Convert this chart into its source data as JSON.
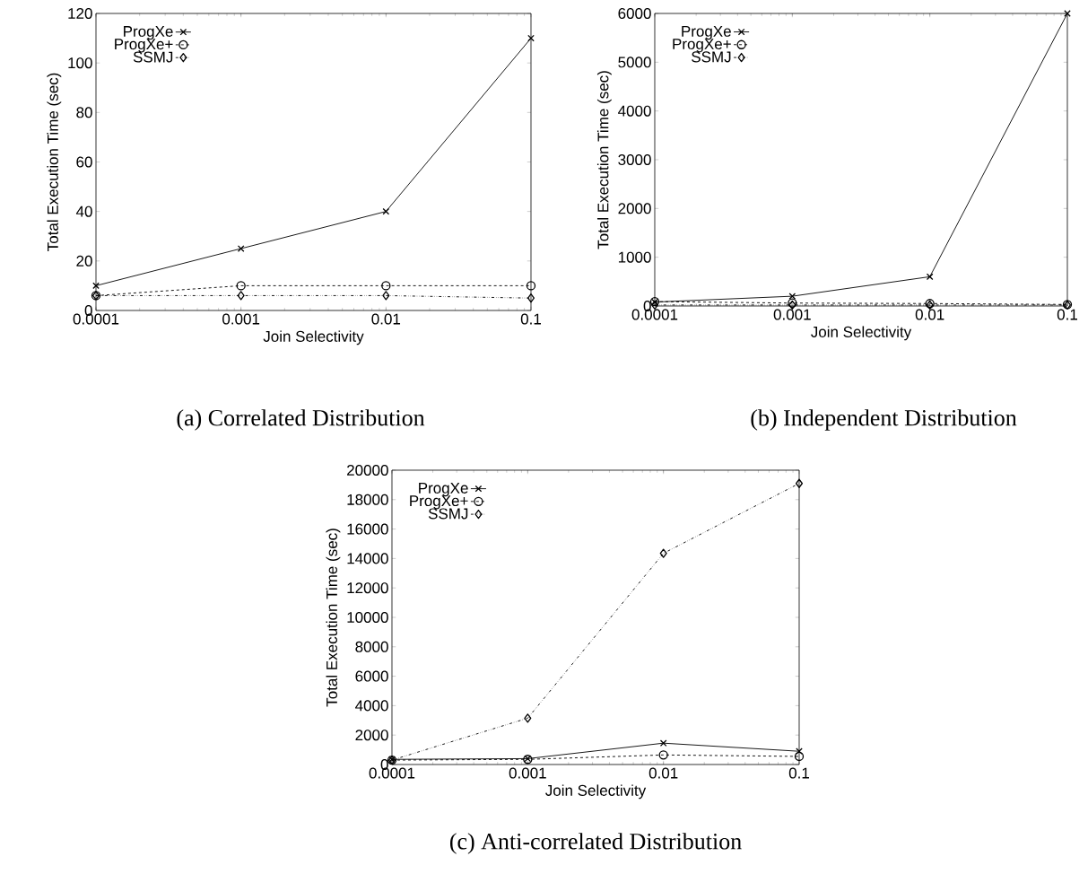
{
  "chart_data": [
    {
      "type": "line",
      "title": "(a) Correlated Distribution",
      "xlabel": "Join Selectivity",
      "ylabel": "Total Execution Time (sec)",
      "log": "x",
      "legend": "top left",
      "x": [
        0.0001,
        0.001,
        0.01,
        0.1
      ],
      "xlim": [
        0.0001,
        0.1
      ],
      "xticks": [
        0.0001,
        0.001,
        0.01,
        0.1
      ],
      "ylim": [
        0,
        120
      ],
      "yticks": [
        0,
        20,
        40,
        60,
        80,
        100,
        120
      ],
      "series": [
        {
          "name": "ProgXe",
          "color": "#000000",
          "marker": "cross",
          "line_style": "solid",
          "values": [
            10,
            25,
            40,
            110
          ]
        },
        {
          "name": "ProgXe+",
          "color": "#000000",
          "marker": "circle",
          "line_style": "dashed",
          "values": [
            6,
            10,
            10,
            10
          ]
        },
        {
          "name": "SSMJ",
          "color": "#000000",
          "marker": "diamond",
          "line_style": "dotted",
          "values": [
            6,
            6,
            6,
            5
          ]
        }
      ]
    },
    {
      "type": "line",
      "title": "(b) Independent Distribution",
      "xlabel": "Join Selectivity",
      "ylabel": "Total Execution Time (sec)",
      "log": "x",
      "legend": "top left",
      "x": [
        0.0001,
        0.001,
        0.01,
        0.1
      ],
      "xlim": [
        0.0001,
        0.1
      ],
      "xticks": [
        0.0001,
        0.001,
        0.01,
        0.1
      ],
      "ylim": [
        0,
        6000
      ],
      "yticks": [
        0,
        1000,
        2000,
        3000,
        4000,
        5000,
        6000
      ],
      "series": [
        {
          "name": "ProgXe",
          "color": "#000000",
          "marker": "cross",
          "line_style": "solid",
          "values": [
            80,
            200,
            600,
            6000
          ]
        },
        {
          "name": "ProgXe+",
          "color": "#000000",
          "marker": "circle",
          "line_style": "dashed",
          "values": [
            90,
            60,
            50,
            30
          ]
        },
        {
          "name": "SSMJ",
          "color": "#000000",
          "marker": "diamond",
          "line_style": "dotted",
          "values": [
            20,
            20,
            20,
            20
          ]
        }
      ]
    },
    {
      "type": "line",
      "title": "(c) Anti-correlated Distribution",
      "xlabel": "Join Selectivity",
      "ylabel": "Total Execution Time (sec)",
      "log": "x",
      "legend": "top left",
      "x": [
        0.0001,
        0.001,
        0.01,
        0.1
      ],
      "xlim": [
        0.0001,
        0.1
      ],
      "xticks": [
        0.0001,
        0.001,
        0.01,
        0.1
      ],
      "ylim": [
        0,
        20000
      ],
      "yticks": [
        0,
        2000,
        4000,
        6000,
        8000,
        10000,
        12000,
        14000,
        16000,
        18000,
        20000
      ],
      "series": [
        {
          "name": "ProgXe",
          "color": "#000000",
          "marker": "cross",
          "line_style": "solid",
          "values": [
            350,
            400,
            1450,
            900
          ]
        },
        {
          "name": "ProgXe+",
          "color": "#000000",
          "marker": "circle",
          "line_style": "dashed",
          "values": [
            300,
            350,
            650,
            550
          ]
        },
        {
          "name": "SSMJ",
          "color": "#000000",
          "marker": "diamond",
          "line_style": "dotted",
          "values": [
            300,
            3150,
            14350,
            19100
          ]
        }
      ]
    }
  ]
}
